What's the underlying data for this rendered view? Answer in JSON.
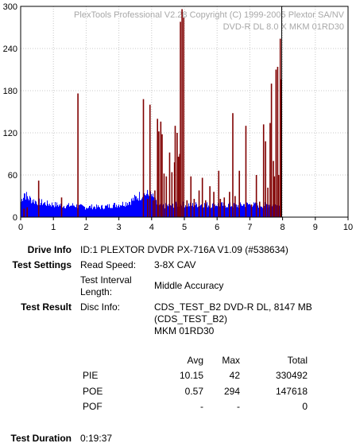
{
  "chart_data": {
    "type": "bar",
    "watermark_line1": "PlexTools Professional V2.28 Copyright (C) 1999-2005 Plextor SA/NV",
    "watermark_line2": "DVD-R DL   8.0 X    MKM 01RD30",
    "xlim": [
      0,
      10
    ],
    "ylim": [
      0,
      300
    ],
    "x_ticks": [
      "0",
      "1",
      "2",
      "3",
      "4",
      "5",
      "6",
      "7",
      "8",
      "9",
      "10"
    ],
    "y_ticks": [
      "0",
      "60",
      "120",
      "180",
      "240",
      "300"
    ],
    "grid": true,
    "data_end_x": 7.95,
    "series": [
      {
        "color": "#0000ff",
        "points": [
          [
            0.0,
            22
          ],
          [
            0.1,
            35
          ],
          [
            0.2,
            28
          ],
          [
            0.4,
            23
          ],
          [
            0.6,
            21
          ],
          [
            0.8,
            19
          ],
          [
            1.0,
            18
          ],
          [
            1.2,
            17
          ],
          [
            1.4,
            16
          ],
          [
            1.6,
            17
          ],
          [
            1.8,
            15
          ],
          [
            2.0,
            14
          ],
          [
            2.2,
            15
          ],
          [
            2.4,
            14
          ],
          [
            2.6,
            15
          ],
          [
            2.8,
            17
          ],
          [
            3.0,
            18
          ],
          [
            3.2,
            20
          ],
          [
            3.4,
            24
          ],
          [
            3.6,
            30
          ],
          [
            3.8,
            33
          ],
          [
            4.0,
            30
          ],
          [
            4.2,
            15
          ],
          [
            4.4,
            16
          ],
          [
            4.6,
            17
          ],
          [
            4.8,
            18
          ],
          [
            5.0,
            18
          ],
          [
            5.2,
            17
          ],
          [
            5.4,
            18
          ],
          [
            5.6,
            18
          ],
          [
            5.8,
            17
          ],
          [
            6.0,
            18
          ],
          [
            6.2,
            17
          ],
          [
            6.4,
            17
          ],
          [
            6.6,
            16
          ],
          [
            6.8,
            18
          ],
          [
            7.0,
            18
          ],
          [
            7.2,
            17
          ],
          [
            7.4,
            17
          ],
          [
            7.6,
            18
          ],
          [
            7.8,
            17
          ],
          [
            7.95,
            16
          ]
        ]
      },
      {
        "color": "#800000",
        "points": [
          [
            0.1,
            12
          ],
          [
            0.2,
            14
          ],
          [
            0.55,
            52
          ],
          [
            1.25,
            28
          ],
          [
            1.75,
            176
          ],
          [
            3.75,
            168
          ],
          [
            3.88,
            26
          ],
          [
            3.95,
            160
          ],
          [
            4.05,
            24
          ],
          [
            4.1,
            38
          ],
          [
            4.18,
            140
          ],
          [
            4.22,
            122
          ],
          [
            4.28,
            136
          ],
          [
            4.32,
            118
          ],
          [
            4.38,
            62
          ],
          [
            4.45,
            58
          ],
          [
            4.55,
            92
          ],
          [
            4.62,
            64
          ],
          [
            4.7,
            78
          ],
          [
            4.72,
            130
          ],
          [
            4.78,
            120
          ],
          [
            4.82,
            86
          ],
          [
            4.86,
            90
          ],
          [
            4.88,
            278
          ],
          [
            4.93,
            296
          ],
          [
            4.98,
            284
          ],
          [
            5.08,
            24
          ],
          [
            5.2,
            58
          ],
          [
            5.3,
            26
          ],
          [
            5.45,
            38
          ],
          [
            5.55,
            56
          ],
          [
            5.65,
            24
          ],
          [
            5.78,
            44
          ],
          [
            5.9,
            36
          ],
          [
            6.05,
            66
          ],
          [
            6.1,
            26
          ],
          [
            6.22,
            28
          ],
          [
            6.38,
            36
          ],
          [
            6.48,
            148
          ],
          [
            6.55,
            30
          ],
          [
            6.68,
            66
          ],
          [
            6.88,
            130
          ],
          [
            7.05,
            18
          ],
          [
            7.2,
            60
          ],
          [
            7.3,
            22
          ],
          [
            7.42,
            132
          ],
          [
            7.48,
            108
          ],
          [
            7.55,
            42
          ],
          [
            7.62,
            134
          ],
          [
            7.66,
            190
          ],
          [
            7.72,
            80
          ],
          [
            7.75,
            58
          ],
          [
            7.8,
            210
          ],
          [
            7.85,
            214
          ],
          [
            7.88,
            60
          ],
          [
            7.93,
            254
          ],
          [
            7.96,
            196
          ]
        ]
      }
    ]
  },
  "info": {
    "drive_info_label": "Drive Info",
    "drive_info_value": "ID:1 PLEXTOR DVDR PX-716A V1.09 (#538634)",
    "test_settings_label": "Test Settings",
    "read_speed_label": "Read Speed:",
    "read_speed_value": "3-8X CAV",
    "interval_label_1": "Test Interval",
    "interval_label_2": "Length:",
    "interval_value": "Middle Accuracy",
    "test_result_label": "Test Result",
    "disc_info_label": "Disc Info:",
    "disc_info_line1": "CDS_TEST_B2 DVD-R DL, 8147 MB",
    "disc_info_line2": "(CDS_TEST_B2)",
    "disc_info_line3": "MKM 01RD30",
    "test_duration_label": "Test Duration",
    "test_duration_value": "0:19:37"
  },
  "stats": {
    "headers": [
      "Avg",
      "Max",
      "Total"
    ],
    "rows": [
      {
        "name": "PIE",
        "avg": "10.15",
        "max": "42",
        "total": "330492"
      },
      {
        "name": "POE",
        "avg": "0.57",
        "max": "294",
        "total": "147618"
      },
      {
        "name": "POF",
        "avg": "-",
        "max": "-",
        "total": "0"
      }
    ]
  }
}
